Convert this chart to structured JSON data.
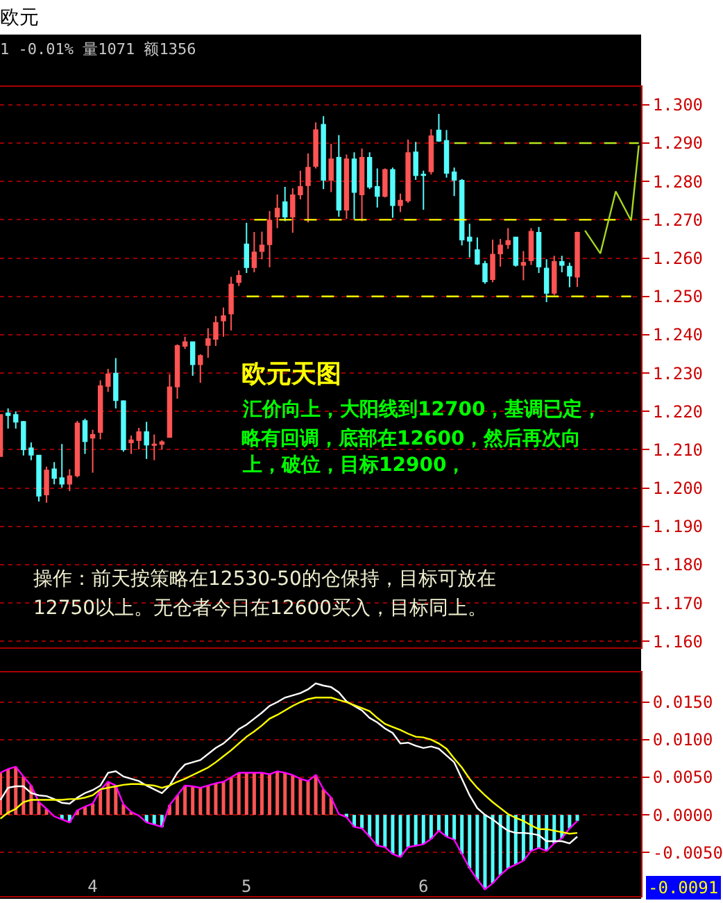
{
  "chart_data": [
    {
      "type": "candlestick",
      "title": "欧元",
      "subtitle": "1 -0.01% 量1071 额1356",
      "categories": [
        null,
        null,
        null,
        null,
        null,
        null,
        null,
        null,
        null,
        null,
        null,
        null,
        "4",
        null,
        null,
        null,
        null,
        null,
        null,
        null,
        null,
        null,
        null,
        null,
        null,
        null,
        null,
        null,
        null,
        null,
        null,
        null,
        "5",
        null,
        null,
        null,
        null,
        null,
        null,
        null,
        null,
        null,
        null,
        null,
        null,
        null,
        null,
        null,
        null,
        null,
        null,
        null,
        null,
        null,
        null,
        "6",
        null,
        null,
        null,
        null,
        null,
        null,
        null,
        null,
        null,
        null,
        null,
        null,
        null,
        null,
        null,
        null,
        null,
        null,
        null,
        null,
        null,
        null,
        null,
        null,
        null,
        null,
        null,
        null
      ],
      "ohlc": [
        [
          1.2083,
          1.2191,
          1.2083,
          1.2191
        ],
        [
          1.2195,
          1.2208,
          1.2155,
          1.219
        ],
        [
          1.2191,
          1.22,
          1.2155,
          1.2173
        ],
        [
          1.2173,
          1.2175,
          1.2085,
          1.2101
        ],
        [
          1.2104,
          1.2119,
          1.2073,
          1.2087
        ],
        [
          1.2085,
          1.2086,
          1.1965,
          1.198
        ],
        [
          1.1983,
          1.2056,
          1.1962,
          1.2046
        ],
        [
          1.2049,
          1.2068,
          1.201,
          1.2026
        ],
        [
          1.2026,
          1.2115,
          1.2001,
          1.2011
        ],
        [
          1.2011,
          1.2049,
          1.1992,
          1.2031
        ],
        [
          1.2033,
          1.2175,
          1.2028,
          1.2169
        ],
        [
          1.2175,
          1.2181,
          1.2089,
          1.2122
        ],
        [
          1.2131,
          1.2152,
          1.204,
          1.2139
        ],
        [
          1.2146,
          1.2281,
          1.2127,
          1.2266
        ],
        [
          1.2266,
          1.2311,
          1.2251,
          1.2297
        ],
        [
          1.2299,
          1.2339,
          1.2208,
          1.2229
        ],
        [
          1.2227,
          1.2229,
          1.2095,
          1.2101
        ],
        [
          1.2119,
          1.2137,
          1.2089,
          1.2125
        ],
        [
          1.2125,
          1.2157,
          1.2101,
          1.2146
        ],
        [
          1.2146,
          1.2173,
          1.2076,
          1.2113
        ],
        [
          1.2112,
          1.214,
          1.2073,
          1.2114
        ],
        [
          1.2115,
          1.2125,
          1.2101,
          1.212
        ],
        [
          1.2133,
          1.2297,
          1.2131,
          1.2263
        ],
        [
          1.2265,
          1.2375,
          1.2233,
          1.2371
        ],
        [
          1.2371,
          1.2395,
          1.2363,
          1.2381
        ],
        [
          1.2381,
          1.2381,
          1.2293,
          1.2323
        ],
        [
          1.2323,
          1.2349,
          1.2275,
          1.2345
        ],
        [
          1.2373,
          1.2417,
          1.234,
          1.2389
        ],
        [
          1.2389,
          1.2449,
          1.2371,
          1.2431
        ],
        [
          1.2437,
          1.2471,
          1.2395,
          1.2449
        ],
        [
          1.2455,
          1.2551,
          1.2411,
          1.2531
        ],
        [
          1.2537,
          1.2568,
          1.2527,
          1.2554
        ],
        [
          1.2636,
          1.2692,
          1.2561,
          1.2576
        ],
        [
          1.2576,
          1.2668,
          1.2563,
          1.2615
        ],
        [
          1.2618,
          1.2669,
          1.2597,
          1.2633
        ],
        [
          1.2636,
          1.2723,
          1.2576,
          1.2698
        ],
        [
          1.2708,
          1.2766,
          1.2678,
          1.2729
        ],
        [
          1.2746,
          1.2786,
          1.2696,
          1.2708
        ],
        [
          1.2708,
          1.2782,
          1.2666,
          1.2764
        ],
        [
          1.2766,
          1.2828,
          1.2753,
          1.2786
        ],
        [
          1.279,
          1.2873,
          1.2693,
          1.2836
        ],
        [
          1.284,
          1.2954,
          1.2834,
          1.2934
        ],
        [
          1.2948,
          1.297,
          1.278,
          1.2804
        ],
        [
          1.2804,
          1.2898,
          1.2772,
          1.2858
        ],
        [
          1.2862,
          1.2921,
          1.2708,
          1.2726
        ],
        [
          1.2726,
          1.287,
          1.2702,
          1.2858
        ],
        [
          1.2858,
          1.2876,
          1.2702,
          1.2772
        ],
        [
          1.2766,
          1.2886,
          1.2696,
          1.2862
        ],
        [
          1.2862,
          1.2876,
          1.278,
          1.2786
        ],
        [
          1.2786,
          1.2834,
          1.2732,
          1.2762
        ],
        [
          1.2762,
          1.2834,
          1.2758,
          1.283
        ],
        [
          1.283,
          1.2836,
          1.2705,
          1.2738
        ],
        [
          1.2738,
          1.2768,
          1.272,
          1.275
        ],
        [
          1.275,
          1.2909,
          1.2744,
          1.2874
        ],
        [
          1.2876,
          1.2903,
          1.2804,
          1.2816
        ],
        [
          1.2818,
          1.2828,
          1.2726,
          1.2816
        ],
        [
          1.2826,
          1.2936,
          1.2818,
          1.2918
        ],
        [
          1.2933,
          1.2976,
          1.2903,
          1.2906
        ],
        [
          1.2906,
          1.2934,
          1.281,
          1.2822
        ],
        [
          1.2824,
          1.2836,
          1.2762,
          1.2804
        ],
        [
          1.2802,
          1.2806,
          1.2633,
          1.2648
        ],
        [
          1.2654,
          1.269,
          1.2602,
          1.2645
        ],
        [
          1.2621,
          1.2654,
          1.2582,
          1.2585
        ],
        [
          1.2585,
          1.2593,
          1.2533,
          1.2539
        ],
        [
          1.2545,
          1.2648,
          1.2537,
          1.2609
        ],
        [
          1.2612,
          1.265,
          1.2578,
          1.2633
        ],
        [
          1.2636,
          1.2678,
          1.2624,
          1.2645
        ],
        [
          1.2654,
          1.2656,
          1.2578,
          1.2582
        ],
        [
          1.2582,
          1.2618,
          1.2542,
          1.2588
        ],
        [
          1.2594,
          1.2678,
          1.2582,
          1.2669
        ],
        [
          1.2666,
          1.2681,
          1.2561,
          1.2578
        ],
        [
          1.2573,
          1.2597,
          1.2485,
          1.2509
        ],
        [
          1.2509,
          1.2606,
          1.2503,
          1.259
        ],
        [
          1.259,
          1.2606,
          1.2563,
          1.2582
        ],
        [
          1.2578,
          1.2588,
          1.2524,
          1.2554
        ],
        [
          1.2551,
          1.2669,
          1.2525,
          1.2666
        ],
        null,
        null,
        null,
        null,
        null,
        null,
        null,
        null
      ],
      "colors": [
        "#ff5454",
        "#54fcfc",
        "#54fcfc",
        "#54fcfc",
        "#54fcfc",
        "#54fcfc",
        "#ff5454",
        "#54fcfc",
        "#54fcfc",
        "#ff5454",
        "#ff5454",
        "#54fcfc",
        "#ff5454",
        "#ff5454",
        "#ff5454",
        "#54fcfc",
        "#54fcfc",
        "#ff5454",
        "#ff5454",
        "#54fcfc",
        "#ff5454",
        "#ff5454",
        "#ff5454",
        "#ff5454",
        "#ff5454",
        "#54fcfc",
        "#ff5454",
        "#ff5454",
        "#ff5454",
        "#ff5454",
        "#ff5454",
        "#ff5454",
        "#54fcfc",
        "#ff5454",
        "#ff5454",
        "#ff5454",
        "#ff5454",
        "#54fcfc",
        "#ff5454",
        "#ff5454",
        "#ff5454",
        "#ff5454",
        "#54fcfc",
        "#ff5454",
        "#54fcfc",
        "#ff5454",
        "#54fcfc",
        "#ff5454",
        "#54fcfc",
        "#54fcfc",
        "#ff5454",
        "#54fcfc",
        "#ff5454",
        "#ff5454",
        "#54fcfc",
        "#54fcfc",
        "#ff5454",
        "#54fcfc",
        "#54fcfc",
        "#54fcfc",
        "#54fcfc",
        "#54fcfc",
        "#54fcfc",
        "#54fcfc",
        "#ff5454",
        "#ff5454",
        "#ff5454",
        "#54fcfc",
        "#ff5454",
        "#ff5454",
        "#54fcfc",
        "#54fcfc",
        "#ff5454",
        "#54fcfc",
        "#54fcfc",
        "#ff5454",
        null,
        null,
        null,
        null,
        null,
        null,
        null,
        null
      ],
      "series": [
        {
          "type": "line",
          "color": "#ffff00",
          "line_style": "dashed",
          "values": [
            null,
            null,
            null,
            null,
            null,
            null,
            null,
            null,
            null,
            null,
            null,
            null,
            null,
            null,
            null,
            null,
            null,
            null,
            null,
            null,
            null,
            null,
            null,
            null,
            null,
            null,
            null,
            null,
            null,
            null,
            null,
            null,
            null,
            1.27,
            1.27,
            1.27,
            1.27,
            1.27,
            1.27,
            1.27,
            1.27,
            1.27,
            1.27,
            1.27,
            1.27,
            1.27,
            1.27,
            1.27,
            1.27,
            1.27,
            1.27,
            1.27,
            1.27,
            1.27,
            1.27,
            1.27,
            1.27,
            1.27,
            1.27,
            1.27,
            1.27,
            1.27,
            1.27,
            1.27,
            1.27,
            1.27,
            1.27,
            1.27,
            1.27,
            1.27,
            1.27,
            1.27,
            1.27,
            1.27,
            1.27,
            1.27,
            1.27,
            1.27,
            1.27,
            1.27,
            1.27,
            null,
            null,
            null
          ]
        },
        {
          "type": "line",
          "color": "#ffff00",
          "line_style": "dashed",
          "values": [
            null,
            null,
            null,
            null,
            null,
            null,
            null,
            null,
            null,
            null,
            null,
            null,
            null,
            null,
            null,
            null,
            null,
            null,
            null,
            null,
            null,
            null,
            null,
            null,
            null,
            null,
            null,
            null,
            null,
            null,
            null,
            null,
            1.25,
            1.25,
            1.25,
            1.25,
            1.25,
            1.25,
            1.25,
            1.25,
            1.25,
            1.25,
            1.25,
            1.25,
            1.25,
            1.25,
            1.25,
            1.25,
            1.25,
            1.25,
            1.25,
            1.25,
            1.25,
            1.25,
            1.25,
            1.25,
            1.25,
            1.25,
            1.25,
            1.25,
            1.25,
            1.25,
            1.25,
            1.25,
            1.25,
            1.25,
            1.25,
            1.25,
            1.25,
            1.25,
            1.25,
            1.25,
            1.25,
            1.25,
            1.25,
            1.25,
            1.25,
            1.25,
            1.25,
            1.25,
            1.25,
            1.25,
            1.25,
            null
          ]
        },
        {
          "type": "line",
          "color": "#b8e61e",
          "line_style": "dashed",
          "values": [
            null,
            null,
            null,
            null,
            null,
            null,
            null,
            null,
            null,
            null,
            null,
            null,
            null,
            null,
            null,
            null,
            null,
            null,
            null,
            null,
            null,
            null,
            null,
            null,
            null,
            null,
            null,
            null,
            null,
            null,
            null,
            null,
            null,
            null,
            null,
            null,
            null,
            null,
            null,
            null,
            null,
            null,
            null,
            null,
            null,
            null,
            null,
            null,
            null,
            null,
            null,
            null,
            null,
            null,
            null,
            null,
            null,
            null,
            null,
            1.29,
            1.29,
            1.29,
            1.29,
            1.29,
            1.29,
            1.29,
            1.29,
            1.29,
            1.29,
            1.29,
            1.29,
            1.29,
            1.29,
            1.29,
            1.29,
            1.29,
            1.29,
            1.29,
            1.29,
            1.29,
            1.29,
            1.29,
            1.29,
            1.29
          ]
        },
        {
          "type": "line",
          "color": "#a8d81e",
          "line_style": "solid",
          "values": [
            null,
            null,
            null,
            null,
            null,
            null,
            null,
            null,
            null,
            null,
            null,
            null,
            null,
            null,
            null,
            null,
            null,
            null,
            null,
            null,
            null,
            null,
            null,
            null,
            null,
            null,
            null,
            null,
            null,
            null,
            null,
            null,
            null,
            null,
            null,
            null,
            null,
            null,
            null,
            null,
            null,
            null,
            null,
            null,
            null,
            null,
            null,
            null,
            null,
            null,
            null,
            null,
            null,
            null,
            null,
            null,
            null,
            null,
            null,
            null,
            null,
            null,
            null,
            null,
            null,
            null,
            null,
            null,
            null,
            null,
            null,
            null,
            null,
            null,
            null,
            null,
            1.2672,
            null,
            1.2612,
            null,
            1.2774,
            null,
            1.2698,
            1.2894
          ]
        }
      ],
      "ylim": [
        1.1585,
        1.3046
      ],
      "yticks": [
        {
          "value": 1.16,
          "label": "1.160"
        },
        {
          "value": 1.17,
          "label": "1.170"
        },
        {
          "value": 1.18,
          "label": "1.180"
        },
        {
          "value": 1.19,
          "label": "1.190"
        },
        {
          "value": 1.2,
          "label": "1.200"
        },
        {
          "value": 1.21,
          "label": "1.210"
        },
        {
          "value": 1.22,
          "label": "1.220"
        },
        {
          "value": 1.23,
          "label": "1.230"
        },
        {
          "value": 1.24,
          "label": "1.240"
        },
        {
          "value": 1.25,
          "label": "1.250"
        },
        {
          "value": 1.26,
          "label": "1.260"
        },
        {
          "value": 1.27,
          "label": "1.270"
        },
        {
          "value": 1.28,
          "label": "1.280"
        },
        {
          "value": 1.29,
          "label": "1.290"
        },
        {
          "value": 1.3,
          "label": "1.300"
        }
      ],
      "grid": "y",
      "tick_labels": "y",
      "annotations": [
        "欧元天图",
        "汇价向上，大阳线到12700，基调已定，",
        "略有回调，底部在12600，然后再次向",
        "上，破位，目标12900，",
        "操作：前天按策略在12530-50的仓保持，目标可放在",
        "12750以上。无仓者今日在12600买入，目标同上。"
      ]
    },
    {
      "type": "bar",
      "categories": [
        null,
        null,
        null,
        null,
        null,
        null,
        null,
        null,
        null,
        null,
        null,
        null,
        "4",
        null,
        null,
        null,
        null,
        null,
        null,
        null,
        null,
        null,
        null,
        null,
        null,
        null,
        null,
        null,
        null,
        null,
        null,
        null,
        "5",
        null,
        null,
        null,
        null,
        null,
        null,
        null,
        null,
        null,
        null,
        null,
        null,
        null,
        null,
        null,
        null,
        null,
        null,
        null,
        null,
        null,
        null,
        "6",
        null,
        null,
        null,
        null,
        null,
        null,
        null,
        null,
        null,
        null,
        null,
        null,
        null,
        null,
        null,
        null,
        null,
        null,
        null,
        null,
        null,
        null,
        null,
        null,
        null,
        null,
        null,
        null
      ],
      "series": [
        {
          "type": "bar",
          "colors": [
            "#ff5454",
            "#ff5454",
            "#ff5454",
            "#ff5454",
            "#ff5454",
            "#ff5454",
            "#ff5454",
            "#54fcfc",
            "#54fcfc",
            "#54fcfc",
            "#ff5454",
            "#ff5454",
            "#ff5454",
            "#ff5454",
            "#ff5454",
            "#ff5454",
            "#ff5454",
            "#ff5454",
            "#54fcfc",
            "#54fcfc",
            "#54fcfc",
            "#54fcfc",
            "#ff5454",
            "#ff5454",
            "#ff5454",
            "#ff5454",
            "#ff5454",
            "#ff5454",
            "#ff5454",
            "#ff5454",
            "#ff5454",
            "#ff5454",
            "#ff5454",
            "#ff5454",
            "#ff5454",
            "#ff5454",
            "#ff5454",
            "#ff5454",
            "#ff5454",
            "#ff5454",
            "#ff5454",
            "#ff5454",
            "#ff5454",
            "#ff5454",
            "#ff5454",
            "#54fcfc",
            "#54fcfc",
            "#54fcfc",
            "#54fcfc",
            "#54fcfc",
            "#54fcfc",
            "#54fcfc",
            "#54fcfc",
            "#54fcfc",
            "#54fcfc",
            "#54fcfc",
            "#54fcfc",
            "#54fcfc",
            "#54fcfc",
            "#54fcfc",
            "#54fcfc",
            "#54fcfc",
            "#54fcfc",
            "#54fcfc",
            "#54fcfc",
            "#54fcfc",
            "#54fcfc",
            "#54fcfc",
            "#54fcfc",
            "#54fcfc",
            "#54fcfc",
            "#54fcfc",
            "#54fcfc",
            "#54fcfc",
            "#54fcfc",
            "#54fcfc",
            null,
            null,
            null,
            null,
            null,
            null,
            null,
            null
          ],
          "values": [
            0.0056,
            0.0061,
            0.0064,
            0.0051,
            0.0039,
            0.0017,
            0.0008,
            null,
            -0.0006,
            -0.001,
            0.0006,
            0.0011,
            0.0015,
            0.0033,
            0.0044,
            0.0039,
            0.0014,
            0.0004,
            null,
            -0.001,
            -0.0013,
            -0.0016,
            0.0013,
            0.0026,
            0.0039,
            0.0038,
            0.0036,
            0.0039,
            0.0042,
            0.0044,
            0.005,
            0.0056,
            0.0056,
            0.0056,
            0.0056,
            0.0054,
            0.0058,
            0.0056,
            0.0053,
            0.0048,
            0.0045,
            0.0053,
            0.0034,
            0.0023,
            null,
            -0.0003,
            -0.0016,
            -0.0018,
            -0.0029,
            -0.0041,
            -0.0043,
            -0.0052,
            -0.0056,
            -0.0043,
            -0.0041,
            -0.0039,
            -0.0032,
            -0.0021,
            -0.0029,
            -0.0033,
            -0.0052,
            -0.0071,
            -0.0086,
            -0.0099,
            -0.0091,
            -0.008,
            -0.0071,
            -0.0066,
            -0.0061,
            -0.0048,
            -0.0044,
            -0.0048,
            -0.0038,
            -0.0031,
            -0.0018,
            -0.0008,
            null,
            null,
            null,
            null,
            null,
            null,
            null,
            null
          ]
        },
        {
          "type": "line",
          "color": "#ff00ff",
          "values": [
            0.0056,
            0.0061,
            0.0064,
            0.0051,
            0.0039,
            0.0017,
            0.0008,
            -0.0002,
            -0.0006,
            -0.001,
            0.0006,
            0.0011,
            0.0015,
            0.0033,
            0.0044,
            0.0039,
            0.0014,
            0.0004,
            -0.0001,
            -0.001,
            -0.0013,
            -0.0016,
            0.0013,
            0.0026,
            0.0039,
            0.0038,
            0.0036,
            0.0039,
            0.0042,
            0.0044,
            0.005,
            0.0056,
            0.0056,
            0.0056,
            0.0056,
            0.0054,
            0.0058,
            0.0056,
            0.0053,
            0.0048,
            0.0045,
            0.0053,
            0.0034,
            0.0023,
            0.0001,
            -0.0003,
            -0.0016,
            -0.0018,
            -0.0029,
            -0.0041,
            -0.0043,
            -0.0052,
            -0.0056,
            -0.0043,
            -0.0041,
            -0.0039,
            -0.0032,
            -0.0021,
            -0.0029,
            -0.0033,
            -0.0052,
            -0.0071,
            -0.0086,
            -0.0099,
            -0.0091,
            -0.008,
            -0.0071,
            -0.0066,
            -0.0061,
            -0.0048,
            -0.0044,
            -0.0048,
            -0.0038,
            -0.0031,
            -0.0018,
            -0.0008,
            null,
            null,
            null,
            null,
            null,
            null,
            null,
            null
          ]
        },
        {
          "type": "line",
          "color": "#ffffff",
          "values": [
            0.002,
            0.0036,
            0.0038,
            0.0038,
            0.0029,
            0.0026,
            0.0025,
            0.0021,
            0.0016,
            0.0015,
            0.0023,
            0.0029,
            0.0033,
            0.0039,
            0.0056,
            0.0058,
            0.0051,
            0.0048,
            0.0045,
            0.0039,
            0.0034,
            0.0029,
            0.0039,
            0.0056,
            0.0067,
            0.007,
            0.0073,
            0.0081,
            0.0089,
            0.0095,
            0.0104,
            0.0114,
            0.012,
            0.0128,
            0.0136,
            0.0145,
            0.015,
            0.0156,
            0.0159,
            0.0162,
            0.0167,
            0.0175,
            0.0172,
            0.017,
            0.0163,
            0.0151,
            0.0145,
            0.0139,
            0.0129,
            0.0123,
            0.0115,
            0.0109,
            0.0095,
            0.0096,
            0.0092,
            0.0089,
            0.0091,
            0.0088,
            0.0079,
            0.007,
            0.0048,
            0.0026,
            0.0009,
            0.0,
            -0.0006,
            -0.0014,
            -0.0021,
            -0.0024,
            -0.0024,
            -0.0025,
            -0.0027,
            -0.0035,
            -0.0035,
            -0.0035,
            -0.0038,
            -0.0029,
            null,
            null,
            null,
            null,
            null,
            null,
            null,
            null
          ]
        },
        {
          "type": "line",
          "color": "#ffff00",
          "values": [
            -0.0005,
            0.0003,
            0.0008,
            0.0017,
            0.002,
            0.002,
            0.002,
            0.002,
            0.002,
            0.0021,
            0.0021,
            0.0023,
            0.0026,
            0.0034,
            0.0036,
            0.0038,
            0.004,
            0.0041,
            0.0041,
            0.004,
            0.0039,
            0.0036,
            0.0039,
            0.0044,
            0.0048,
            0.0053,
            0.0058,
            0.0063,
            0.007,
            0.0078,
            0.0086,
            0.0095,
            0.0104,
            0.0111,
            0.0119,
            0.0128,
            0.0133,
            0.0139,
            0.0145,
            0.015,
            0.0154,
            0.0156,
            0.0156,
            0.0156,
            0.0153,
            0.015,
            0.0146,
            0.0142,
            0.0138,
            0.0129,
            0.0121,
            0.0117,
            0.0113,
            0.0108,
            0.0104,
            0.0103,
            0.01,
            0.0095,
            0.0088,
            0.0075,
            0.0063,
            0.0048,
            0.0036,
            0.0026,
            0.0017,
            0.0009,
            0.0001,
            -0.0004,
            -0.0008,
            -0.0014,
            -0.0019,
            -0.0019,
            -0.0021,
            -0.0023,
            -0.0025,
            -0.0024,
            null,
            null,
            null,
            null,
            null,
            null,
            null,
            null
          ]
        }
      ],
      "ylim": [
        -0.0108,
        0.019
      ],
      "yticks": [
        {
          "value": -0.005,
          "label": "-0.0050"
        },
        {
          "value": 0,
          "label": "0.0000"
        },
        {
          "value": 0.005,
          "label": "0.0050"
        },
        {
          "value": 0.01,
          "label": "0.0100"
        },
        {
          "value": 0.015,
          "label": "0.0150"
        }
      ],
      "grid": "y",
      "annotations": [
        "-0.0091"
      ]
    }
  ]
}
